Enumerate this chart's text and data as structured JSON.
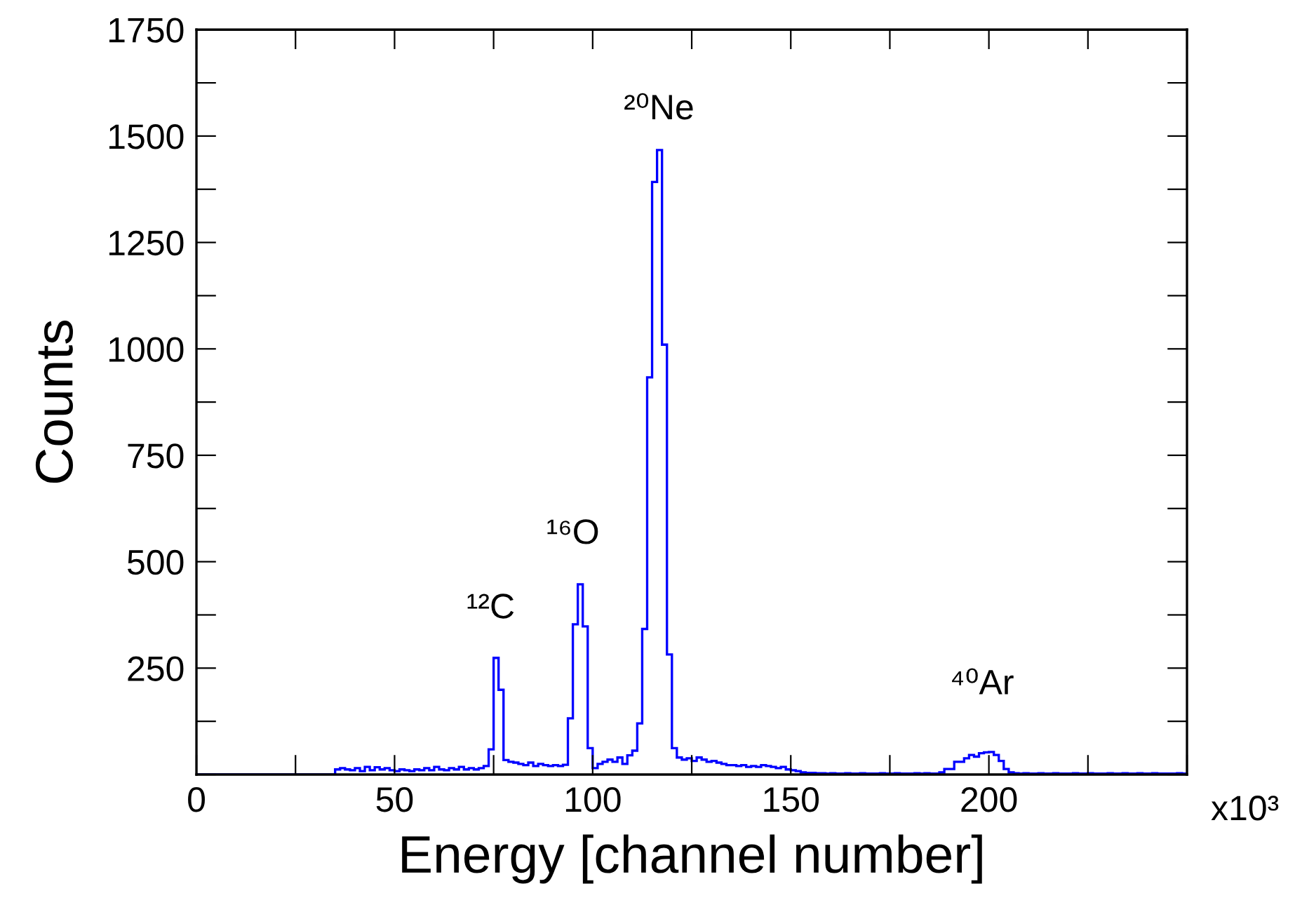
{
  "chart_data": {
    "type": "histogram",
    "xlabel": "Energy [channel number]",
    "ylabel": "Counts",
    "color": "#0000ff",
    "bins": [
      0,
      1.25,
      2.5,
      3.75,
      5,
      6.25,
      7.5,
      8.75,
      10,
      11.25,
      12.5,
      13.75,
      15,
      16.25,
      17.5,
      18.75,
      20,
      21.25,
      22.5,
      23.75,
      25,
      26.25,
      27.5,
      28.75,
      30,
      31.25,
      32.5,
      33.75,
      35,
      36.25,
      37.5,
      38.75,
      40,
      41.25,
      42.5,
      43.75,
      45,
      46.25,
      47.5,
      48.75,
      50,
      51.25,
      52.5,
      53.75,
      55,
      56.25,
      57.5,
      58.75,
      60,
      61.25,
      62.5,
      63.75,
      65,
      66.25,
      67.5,
      68.75,
      70,
      71.25,
      72.5,
      73.75,
      75,
      76.25,
      77.5,
      78.75,
      80,
      81.25,
      82.5,
      83.75,
      85,
      86.25,
      87.5,
      88.75,
      90,
      91.25,
      92.5,
      93.75,
      95,
      96.25,
      97.5,
      98.75,
      100,
      101.25,
      102.5,
      103.75,
      105,
      106.25,
      107.5,
      108.75,
      110,
      111.25,
      112.5,
      113.75,
      115,
      116.25,
      117.5,
      118.75,
      120,
      121.25,
      122.5,
      123.75,
      125,
      126.25,
      127.5,
      128.75,
      130,
      131.25,
      132.5,
      133.75,
      135,
      136.25,
      137.5,
      138.75,
      140,
      141.25,
      142.5,
      143.75,
      145,
      146.25,
      147.5,
      148.75,
      150,
      151.25,
      152.5,
      153.75,
      155,
      156.25,
      157.5,
      158.75,
      160,
      161.25,
      162.5,
      163.75,
      165,
      166.25,
      167.5,
      168.75,
      170,
      171.25,
      172.5,
      173.75,
      175,
      176.25,
      177.5,
      178.75,
      180,
      181.25,
      182.5,
      183.75,
      185,
      186.25,
      187.5,
      188.75,
      190,
      191.25,
      192.5,
      193.75,
      195,
      196.25,
      197.5,
      198.75,
      200,
      201.25,
      202.5,
      203.75,
      205,
      206.25,
      207.5,
      208.75,
      210,
      211.25,
      212.5,
      213.75,
      215,
      216.25,
      217.5,
      218.75,
      220,
      221.25,
      222.5,
      223.75,
      225,
      226.25,
      227.5,
      228.75,
      230,
      231.25,
      232.5,
      233.75,
      235,
      236.25,
      237.5,
      238.75,
      240,
      241.25,
      242.5,
      243.75,
      245,
      246.25,
      247.5,
      248.75,
      250
    ],
    "values": [
      0,
      0,
      0,
      0,
      0,
      0,
      0,
      0,
      0,
      0,
      0,
      0,
      0,
      0,
      0,
      0,
      0,
      0,
      0,
      0,
      0,
      0,
      0,
      0,
      0,
      0,
      0,
      0,
      12,
      15,
      12,
      10,
      15,
      8,
      18,
      10,
      17,
      12,
      15,
      10,
      8,
      12,
      10,
      8,
      12,
      10,
      15,
      10,
      18,
      12,
      10,
      15,
      12,
      18,
      12,
      15,
      12,
      15,
      20,
      59,
      274,
      199,
      34,
      30,
      28,
      25,
      22,
      28,
      20,
      25,
      22,
      20,
      22,
      20,
      23,
      132,
      353,
      447,
      348,
      62,
      15,
      25,
      30,
      35,
      30,
      40,
      25,
      45,
      56,
      120,
      342,
      933,
      1392,
      1467,
      1010,
      282,
      62,
      40,
      35,
      38,
      32,
      40,
      35,
      30,
      32,
      28,
      25,
      22,
      22,
      20,
      22,
      18,
      20,
      18,
      22,
      20,
      18,
      15,
      18,
      12,
      10,
      8,
      5,
      4,
      4,
      3,
      3,
      2,
      3,
      2,
      2,
      3,
      2,
      2,
      3,
      2,
      2,
      2,
      3,
      2,
      2,
      3,
      2,
      2,
      2,
      3,
      2,
      3,
      2,
      2,
      5,
      13,
      13,
      30,
      30,
      38,
      46,
      42,
      50,
      52,
      53,
      46,
      32,
      13,
      5,
      3,
      2,
      3,
      2,
      2,
      3,
      2,
      2,
      3,
      2,
      2,
      2,
      3,
      2,
      2,
      3,
      2,
      2,
      2,
      3,
      2,
      2,
      3,
      2,
      2,
      3,
      2,
      2,
      3,
      2,
      2,
      2,
      2,
      3,
      2
    ],
    "xlim": [
      0,
      250
    ],
    "xticks": [
      0,
      {
        "value": 25,
        "label": null
      },
      50,
      {
        "value": 75,
        "label": null
      },
      100,
      {
        "value": 125,
        "label": null
      },
      150,
      {
        "value": 175,
        "label": null
      },
      200,
      {
        "value": 225,
        "label": null
      },
      {
        "value": 250,
        "label": null
      }
    ],
    "ylim": [
      0,
      1750
    ],
    "yticks": [
      {
        "value": 0,
        "label": null
      },
      {
        "value": 125,
        "label": null
      },
      250,
      {
        "value": 375,
        "label": null
      },
      500,
      {
        "value": 625,
        "label": null
      },
      750,
      {
        "value": 875,
        "label": null
      },
      1000,
      {
        "value": 1125,
        "label": null
      },
      1250,
      {
        "value": 1375,
        "label": null
      },
      1500,
      {
        "value": 1625,
        "label": null
      },
      1750
    ],
    "annotations": [
      "¹²C",
      "¹⁶O",
      "²⁰Ne",
      "⁴⁰Ar",
      "x10³"
    ]
  }
}
